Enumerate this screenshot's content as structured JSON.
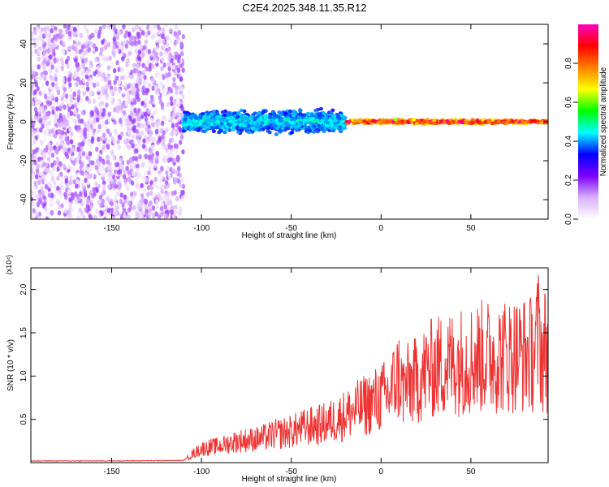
{
  "figure": {
    "title": "C2E4.2025.348.11.35.R12"
  },
  "chart_data": [
    {
      "type": "heatmap",
      "title": "C2E4.2025.348.11.35.R12",
      "xlabel": "Height of straight line (km)",
      "ylabel": "Frequency (Hz)",
      "xlim": [
        -195,
        93
      ],
      "ylim": [
        -50,
        50
      ],
      "xticks": [
        -150,
        -100,
        -50,
        0,
        50
      ],
      "yticks": [
        -40,
        -20,
        0,
        20,
        40
      ],
      "colorbar": {
        "label": "Normalized spectral amplitude",
        "range": [
          0,
          1
        ],
        "ticks": [
          "0.0",
          "0.2",
          "0.4",
          "0.6",
          "0.8"
        ],
        "colormap": [
          "#ffffff",
          "#d9b0ff",
          "#7a00ff",
          "#0000ff",
          "#00ffff",
          "#00ff00",
          "#ffff00",
          "#ff7f00",
          "#ff0000",
          "#ff00c0"
        ]
      },
      "regions": [
        {
          "x": [
            -195,
            -110
          ],
          "freq_range": [
            -50,
            50
          ],
          "amplitude": [
            0.0,
            0.2
          ],
          "pattern": "broadband noise"
        },
        {
          "x": [
            -110,
            -20
          ],
          "freq_center": 0,
          "freq_halfwidth": 7,
          "amplitude": [
            0.3,
            0.5
          ]
        },
        {
          "x": [
            -20,
            93
          ],
          "freq_center": 0,
          "freq_halfwidth": 1.5,
          "amplitude": [
            0.6,
            1.0
          ]
        }
      ],
      "grid": false
    },
    {
      "type": "line",
      "title": "",
      "xlabel": "Height of straight line (km)",
      "ylabel": "SNR (10 * v/v)",
      "y_multiplier_label": "(x10⁴)",
      "xlim": [
        -195,
        93
      ],
      "ylim": [
        0,
        22500
      ],
      "xticks": [
        -150,
        -100,
        -50,
        0,
        50
      ],
      "yticks": [
        5000,
        10000,
        15000,
        20000
      ],
      "ytick_labels": [
        "0.5",
        "1.0",
        "1.5",
        "2.0"
      ],
      "color": "#ee3333",
      "grid": false,
      "series": [
        {
          "x": [
            -195,
            -150,
            -110,
            -105,
            -100,
            -95,
            -90,
            -85,
            -80,
            -75,
            -70,
            -65,
            -60,
            -55,
            -50,
            -45,
            -40,
            -35,
            -30,
            -25,
            -20,
            -15,
            -10,
            -5,
            0,
            5,
            8,
            10,
            12,
            15,
            20,
            25,
            30,
            35,
            40,
            45,
            50,
            55,
            60,
            65,
            70,
            75,
            80,
            85,
            88,
            90,
            92,
            93
          ],
          "y": [
            200,
            200,
            250,
            1000,
            1600,
            1800,
            1900,
            2200,
            2500,
            2600,
            2700,
            2900,
            3200,
            3400,
            3600,
            3900,
            4200,
            4300,
            4600,
            5000,
            5500,
            6000,
            6500,
            7000,
            7500,
            8000,
            9500,
            10000,
            8500,
            9000,
            9500,
            10500,
            11000,
            11300,
            11500,
            11800,
            12000,
            12200,
            12300,
            12300,
            12400,
            12500,
            12500,
            12600,
            15000,
            12000,
            14000,
            11000
          ]
        }
      ]
    }
  ]
}
